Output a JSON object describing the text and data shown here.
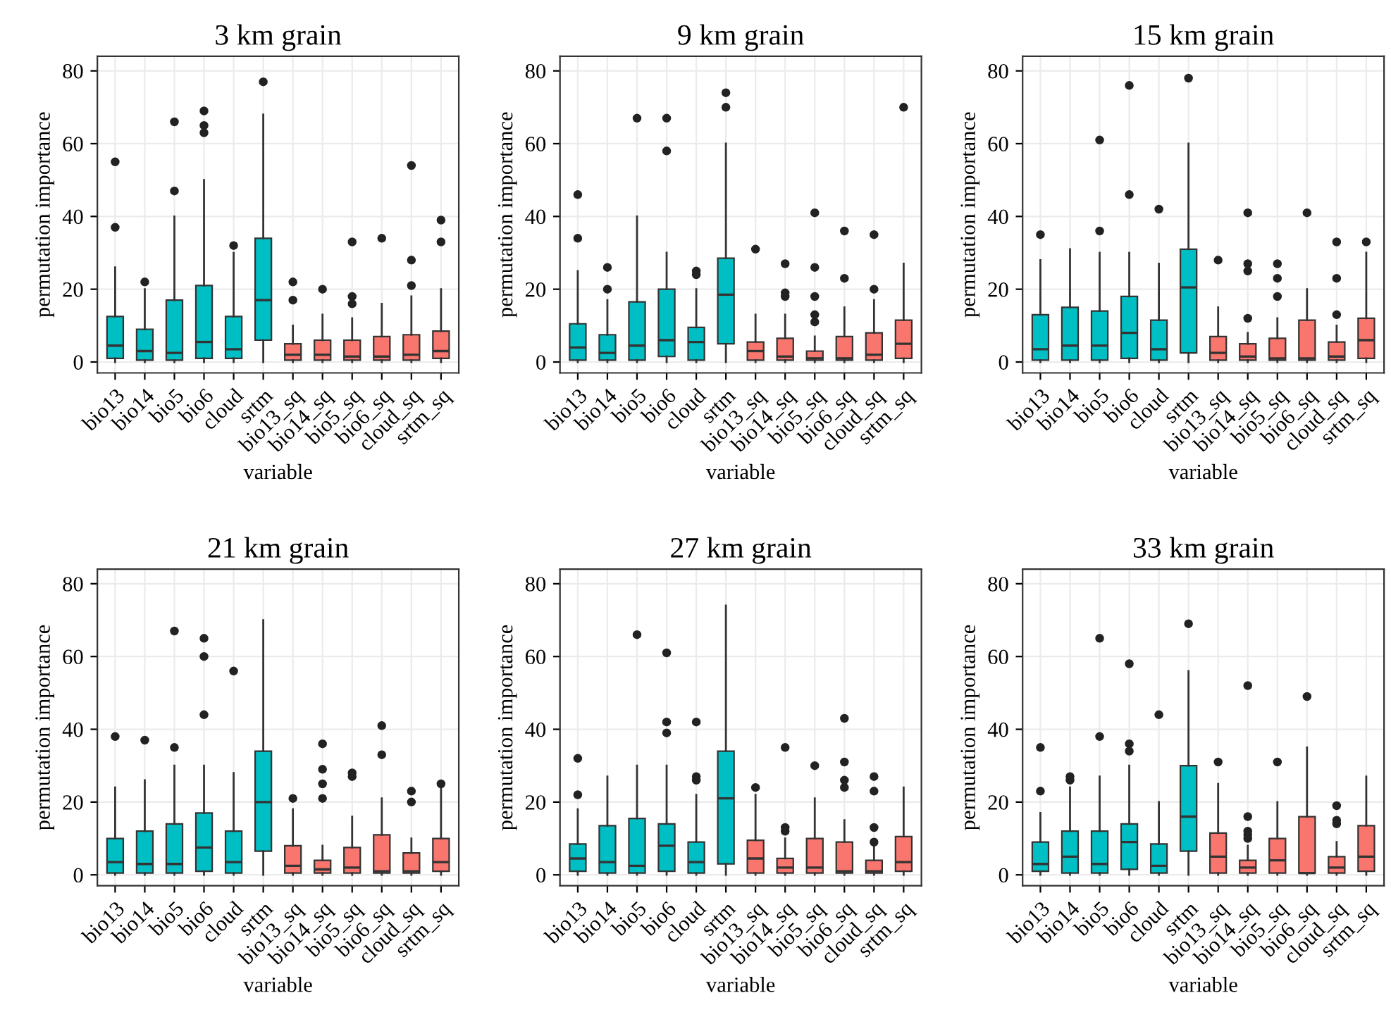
{
  "chart_data": [
    {
      "type": "box",
      "title": "3 km grain",
      "xlabel": "variable",
      "ylabel": "permutation importance",
      "categories": [
        "bio13",
        "bio14",
        "bio5",
        "bio6",
        "cloud",
        "srtm",
        "bio13_sq",
        "bio14_sq",
        "bio5_sq",
        "bio6_sq",
        "cloud_sq",
        "srtm_sq"
      ],
      "colors": [
        "#00bfc4",
        "#00bfc4",
        "#00bfc4",
        "#00bfc4",
        "#00bfc4",
        "#00bfc4",
        "#f8766d",
        "#f8766d",
        "#f8766d",
        "#f8766d",
        "#f8766d",
        "#f8766d"
      ],
      "ylim": [
        -3,
        84
      ],
      "yticks": [
        0,
        20,
        40,
        60,
        80
      ],
      "grid": true,
      "boxes": [
        {
          "low": 0,
          "q1": 1,
          "median": 4.5,
          "q3": 12.5,
          "high": 26,
          "outliers": [
            37,
            55
          ]
        },
        {
          "low": 0,
          "q1": 0.5,
          "median": 3,
          "q3": 9,
          "high": 20,
          "outliers": [
            22
          ]
        },
        {
          "low": 0,
          "q1": 0.5,
          "median": 2.5,
          "q3": 17,
          "high": 40,
          "outliers": [
            47,
            66
          ]
        },
        {
          "low": 0,
          "q1": 1,
          "median": 5.5,
          "q3": 21,
          "high": 50,
          "outliers": [
            63,
            65,
            69
          ]
        },
        {
          "low": 0,
          "q1": 1,
          "median": 3.5,
          "q3": 12.5,
          "high": 30,
          "outliers": [
            32
          ]
        },
        {
          "low": 0,
          "q1": 6,
          "median": 17,
          "q3": 34,
          "high": 68,
          "outliers": [
            77
          ]
        },
        {
          "low": 0,
          "q1": 0.5,
          "median": 2,
          "q3": 5,
          "high": 10,
          "outliers": [
            17,
            22
          ]
        },
        {
          "low": 0,
          "q1": 0.5,
          "median": 2,
          "q3": 6,
          "high": 13,
          "outliers": [
            20
          ]
        },
        {
          "low": 0,
          "q1": 0.5,
          "median": 1.5,
          "q3": 6,
          "high": 12,
          "outliers": [
            16,
            18,
            33
          ]
        },
        {
          "low": 0,
          "q1": 0.5,
          "median": 1.5,
          "q3": 7,
          "high": 16,
          "outliers": [
            34
          ]
        },
        {
          "low": 0,
          "q1": 0.5,
          "median": 2,
          "q3": 7.5,
          "high": 18,
          "outliers": [
            21,
            28,
            54
          ]
        },
        {
          "low": 0,
          "q1": 1,
          "median": 3,
          "q3": 8.5,
          "high": 20,
          "outliers": [
            33,
            39
          ]
        }
      ]
    },
    {
      "type": "box",
      "title": "9 km grain",
      "xlabel": "variable",
      "ylabel": "permutation importance",
      "categories": [
        "bio13",
        "bio14",
        "bio5",
        "bio6",
        "cloud",
        "srtm",
        "bio13_sq",
        "bio14_sq",
        "bio5_sq",
        "bio6_sq",
        "cloud_sq",
        "srtm_sq"
      ],
      "colors": [
        "#00bfc4",
        "#00bfc4",
        "#00bfc4",
        "#00bfc4",
        "#00bfc4",
        "#00bfc4",
        "#f8766d",
        "#f8766d",
        "#f8766d",
        "#f8766d",
        "#f8766d",
        "#f8766d"
      ],
      "ylim": [
        -3,
        84
      ],
      "yticks": [
        0,
        20,
        40,
        60,
        80
      ],
      "grid": true,
      "boxes": [
        {
          "low": 0,
          "q1": 0.5,
          "median": 4,
          "q3": 10.5,
          "high": 25,
          "outliers": [
            34,
            46
          ]
        },
        {
          "low": 0,
          "q1": 0.5,
          "median": 2.5,
          "q3": 7.5,
          "high": 17,
          "outliers": [
            20,
            26
          ]
        },
        {
          "low": 0,
          "q1": 0.5,
          "median": 4.5,
          "q3": 16.5,
          "high": 40,
          "outliers": [
            67
          ]
        },
        {
          "low": 0,
          "q1": 1.5,
          "median": 6,
          "q3": 20,
          "high": 30,
          "outliers": [
            58,
            67
          ]
        },
        {
          "low": 0,
          "q1": 0.5,
          "median": 5.5,
          "q3": 9.5,
          "high": 20,
          "outliers": [
            24,
            25
          ]
        },
        {
          "low": 0,
          "q1": 5,
          "median": 18.5,
          "q3": 28.5,
          "high": 60,
          "outliers": [
            70,
            74
          ]
        },
        {
          "low": 0,
          "q1": 0.5,
          "median": 3,
          "q3": 5.5,
          "high": 13,
          "outliers": [
            31
          ]
        },
        {
          "low": 0,
          "q1": 0.5,
          "median": 1.5,
          "q3": 6.5,
          "high": 13,
          "outliers": [
            18,
            19,
            27
          ]
        },
        {
          "low": 0,
          "q1": 0.5,
          "median": 1,
          "q3": 3,
          "high": 7,
          "outliers": [
            11,
            13,
            18,
            26,
            41
          ]
        },
        {
          "low": 0,
          "q1": 0.5,
          "median": 1,
          "q3": 7,
          "high": 15,
          "outliers": [
            23,
            36
          ]
        },
        {
          "low": 0,
          "q1": 0.5,
          "median": 2,
          "q3": 8,
          "high": 17,
          "outliers": [
            20,
            35
          ]
        },
        {
          "low": 0,
          "q1": 1,
          "median": 5,
          "q3": 11.5,
          "high": 27,
          "outliers": [
            70
          ]
        }
      ]
    },
    {
      "type": "box",
      "title": "15 km grain",
      "xlabel": "variable",
      "ylabel": "permutation importance",
      "categories": [
        "bio13",
        "bio14",
        "bio5",
        "bio6",
        "cloud",
        "srtm",
        "bio13_sq",
        "bio14_sq",
        "bio5_sq",
        "bio6_sq",
        "cloud_sq",
        "srtm_sq"
      ],
      "colors": [
        "#00bfc4",
        "#00bfc4",
        "#00bfc4",
        "#00bfc4",
        "#00bfc4",
        "#00bfc4",
        "#f8766d",
        "#f8766d",
        "#f8766d",
        "#f8766d",
        "#f8766d",
        "#f8766d"
      ],
      "ylim": [
        -3,
        84
      ],
      "yticks": [
        0,
        20,
        40,
        60,
        80
      ],
      "grid": true,
      "boxes": [
        {
          "low": 0,
          "q1": 0.5,
          "median": 3.5,
          "q3": 13,
          "high": 28,
          "outliers": [
            35
          ]
        },
        {
          "low": 0,
          "q1": 0.5,
          "median": 4.5,
          "q3": 15,
          "high": 31
        },
        {
          "low": 0,
          "q1": 0.5,
          "median": 4.5,
          "q3": 14,
          "high": 30,
          "outliers": [
            36,
            61
          ]
        },
        {
          "low": 0,
          "q1": 1,
          "median": 8,
          "q3": 18,
          "high": 30,
          "outliers": [
            46,
            76
          ]
        },
        {
          "low": 0,
          "q1": 0.5,
          "median": 3.5,
          "q3": 11.5,
          "high": 27,
          "outliers": [
            42
          ]
        },
        {
          "low": 0,
          "q1": 2.5,
          "median": 20.5,
          "q3": 31,
          "high": 60,
          "outliers": [
            78
          ]
        },
        {
          "low": 0,
          "q1": 0.5,
          "median": 2.5,
          "q3": 7,
          "high": 15,
          "outliers": [
            28
          ]
        },
        {
          "low": 0,
          "q1": 0.5,
          "median": 1.5,
          "q3": 5,
          "high": 8,
          "outliers": [
            12,
            25,
            27,
            41
          ]
        },
        {
          "low": 0,
          "q1": 0.5,
          "median": 1,
          "q3": 6.5,
          "high": 12,
          "outliers": [
            18,
            23,
            27
          ]
        },
        {
          "low": 0,
          "q1": 0.5,
          "median": 1,
          "q3": 11.5,
          "high": 20,
          "outliers": [
            41
          ]
        },
        {
          "low": 0,
          "q1": 0.5,
          "median": 1.5,
          "q3": 5.5,
          "high": 10,
          "outliers": [
            13,
            23,
            33
          ]
        },
        {
          "low": 0,
          "q1": 1,
          "median": 6,
          "q3": 12,
          "high": 30,
          "outliers": [
            33
          ]
        }
      ]
    },
    {
      "type": "box",
      "title": "21 km grain",
      "xlabel": "variable",
      "ylabel": "permutation importance",
      "categories": [
        "bio13",
        "bio14",
        "bio5",
        "bio6",
        "cloud",
        "srtm",
        "bio13_sq",
        "bio14_sq",
        "bio5_sq",
        "bio6_sq",
        "cloud_sq",
        "srtm_sq"
      ],
      "colors": [
        "#00bfc4",
        "#00bfc4",
        "#00bfc4",
        "#00bfc4",
        "#00bfc4",
        "#00bfc4",
        "#f8766d",
        "#f8766d",
        "#f8766d",
        "#f8766d",
        "#f8766d",
        "#f8766d"
      ],
      "ylim": [
        -3,
        84
      ],
      "yticks": [
        0,
        20,
        40,
        60,
        80
      ],
      "grid": true,
      "boxes": [
        {
          "low": 0,
          "q1": 0.5,
          "median": 3.5,
          "q3": 10,
          "high": 24,
          "outliers": [
            38
          ]
        },
        {
          "low": 0,
          "q1": 0.5,
          "median": 3,
          "q3": 12,
          "high": 26,
          "outliers": [
            37
          ]
        },
        {
          "low": 0,
          "q1": 0.5,
          "median": 3,
          "q3": 14,
          "high": 30,
          "outliers": [
            35,
            67
          ]
        },
        {
          "low": 0,
          "q1": 1,
          "median": 7.5,
          "q3": 17,
          "high": 30,
          "outliers": [
            44,
            60,
            65
          ]
        },
        {
          "low": 0,
          "q1": 0.5,
          "median": 3.5,
          "q3": 12,
          "high": 28,
          "outliers": [
            56
          ]
        },
        {
          "low": 0,
          "q1": 6.5,
          "median": 20,
          "q3": 34,
          "high": 70
        },
        {
          "low": 0,
          "q1": 0.5,
          "median": 2.5,
          "q3": 8,
          "high": 18,
          "outliers": [
            21
          ]
        },
        {
          "low": 0,
          "q1": 0.5,
          "median": 1.5,
          "q3": 4,
          "high": 8,
          "outliers": [
            21,
            25,
            29,
            36
          ]
        },
        {
          "low": 0,
          "q1": 0.5,
          "median": 2,
          "q3": 7.5,
          "high": 16,
          "outliers": [
            27,
            28
          ]
        },
        {
          "low": 0,
          "q1": 0.5,
          "median": 1,
          "q3": 11,
          "high": 21,
          "outliers": [
            33,
            41
          ]
        },
        {
          "low": 0,
          "q1": 0.5,
          "median": 1,
          "q3": 6,
          "high": 10,
          "outliers": [
            20,
            23
          ]
        },
        {
          "low": 0,
          "q1": 1,
          "median": 3.5,
          "q3": 10,
          "high": 24,
          "outliers": [
            25
          ]
        }
      ]
    },
    {
      "type": "box",
      "title": "27 km grain",
      "xlabel": "variable",
      "ylabel": "permutation importance",
      "categories": [
        "bio13",
        "bio14",
        "bio5",
        "bio6",
        "cloud",
        "srtm",
        "bio13_sq",
        "bio14_sq",
        "bio5_sq",
        "bio6_sq",
        "cloud_sq",
        "srtm_sq"
      ],
      "colors": [
        "#00bfc4",
        "#00bfc4",
        "#00bfc4",
        "#00bfc4",
        "#00bfc4",
        "#00bfc4",
        "#f8766d",
        "#f8766d",
        "#f8766d",
        "#f8766d",
        "#f8766d",
        "#f8766d"
      ],
      "ylim": [
        -3,
        84
      ],
      "yticks": [
        0,
        20,
        40,
        60,
        80
      ],
      "grid": true,
      "boxes": [
        {
          "low": 0,
          "q1": 1,
          "median": 4.5,
          "q3": 8.5,
          "high": 18,
          "outliers": [
            22,
            32
          ]
        },
        {
          "low": 0,
          "q1": 0.5,
          "median": 3.5,
          "q3": 13.5,
          "high": 27
        },
        {
          "low": 0,
          "q1": 0.5,
          "median": 2.5,
          "q3": 15.5,
          "high": 30,
          "outliers": [
            66
          ]
        },
        {
          "low": 0,
          "q1": 1,
          "median": 8,
          "q3": 14,
          "high": 30,
          "outliers": [
            39,
            42,
            61
          ]
        },
        {
          "low": 0,
          "q1": 0.5,
          "median": 3.5,
          "q3": 9,
          "high": 22,
          "outliers": [
            26,
            27,
            42
          ]
        },
        {
          "low": 0,
          "q1": 3,
          "median": 21,
          "q3": 34,
          "high": 74
        },
        {
          "low": 0,
          "q1": 0.5,
          "median": 4.5,
          "q3": 9.5,
          "high": 22,
          "outliers": [
            24
          ]
        },
        {
          "low": 0,
          "q1": 0.5,
          "median": 2,
          "q3": 4.5,
          "high": 10,
          "outliers": [
            12,
            13,
            35
          ]
        },
        {
          "low": 0,
          "q1": 0.5,
          "median": 2,
          "q3": 10,
          "high": 21,
          "outliers": [
            30
          ]
        },
        {
          "low": 0,
          "q1": 0.5,
          "median": 1,
          "q3": 9,
          "high": 15,
          "outliers": [
            24,
            26,
            31,
            43
          ]
        },
        {
          "low": 0,
          "q1": 0.5,
          "median": 1,
          "q3": 4,
          "high": 8,
          "outliers": [
            9,
            13,
            23,
            27
          ]
        },
        {
          "low": 0,
          "q1": 1,
          "median": 3.5,
          "q3": 10.5,
          "high": 24
        }
      ]
    },
    {
      "type": "box",
      "title": "33 km grain",
      "xlabel": "variable",
      "ylabel": "permutation importance",
      "categories": [
        "bio13",
        "bio14",
        "bio5",
        "bio6",
        "cloud",
        "srtm",
        "bio13_sq",
        "bio14_sq",
        "bio5_sq",
        "bio6_sq",
        "cloud_sq",
        "srtm_sq"
      ],
      "colors": [
        "#00bfc4",
        "#00bfc4",
        "#00bfc4",
        "#00bfc4",
        "#00bfc4",
        "#00bfc4",
        "#f8766d",
        "#f8766d",
        "#f8766d",
        "#f8766d",
        "#f8766d",
        "#f8766d"
      ],
      "ylim": [
        -3,
        84
      ],
      "yticks": [
        0,
        20,
        40,
        60,
        80
      ],
      "grid": true,
      "boxes": [
        {
          "low": 0,
          "q1": 1,
          "median": 3,
          "q3": 9,
          "high": 17,
          "outliers": [
            23,
            35
          ]
        },
        {
          "low": 0,
          "q1": 0.5,
          "median": 5,
          "q3": 12,
          "high": 24,
          "outliers": [
            26,
            27
          ]
        },
        {
          "low": 0,
          "q1": 0.5,
          "median": 3,
          "q3": 12,
          "high": 27,
          "outliers": [
            38,
            65
          ]
        },
        {
          "low": 0,
          "q1": 1.5,
          "median": 9,
          "q3": 14,
          "high": 30,
          "outliers": [
            34,
            36,
            58
          ]
        },
        {
          "low": 0,
          "q1": 0.5,
          "median": 2.5,
          "q3": 8.5,
          "high": 20,
          "outliers": [
            44
          ]
        },
        {
          "low": 0,
          "q1": 6.5,
          "median": 16,
          "q3": 30,
          "high": 56,
          "outliers": [
            69
          ]
        },
        {
          "low": 0,
          "q1": 0.5,
          "median": 5,
          "q3": 11.5,
          "high": 25,
          "outliers": [
            31
          ]
        },
        {
          "low": 0,
          "q1": 0.5,
          "median": 2,
          "q3": 4,
          "high": 8,
          "outliers": [
            10,
            11,
            12,
            16,
            52
          ]
        },
        {
          "low": 0,
          "q1": 0.5,
          "median": 4,
          "q3": 10,
          "high": 20,
          "outliers": [
            31
          ]
        },
        {
          "low": 0,
          "q1": 0.5,
          "median": 0.5,
          "q3": 16,
          "high": 35,
          "outliers": [
            49
          ]
        },
        {
          "low": 0,
          "q1": 0.5,
          "median": 2,
          "q3": 5,
          "high": 9,
          "outliers": [
            14,
            15,
            19
          ]
        },
        {
          "low": 0,
          "q1": 1,
          "median": 5,
          "q3": 13.5,
          "high": 27
        }
      ]
    }
  ]
}
